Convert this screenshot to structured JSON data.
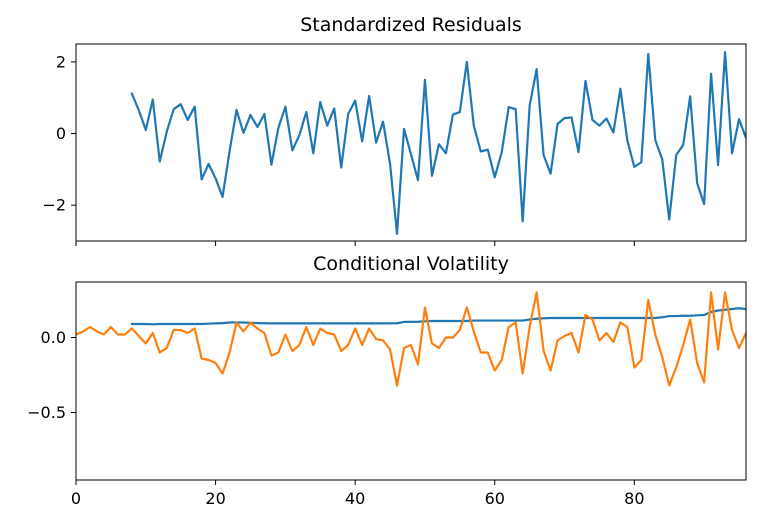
{
  "colors": {
    "blue": "#1f77b4",
    "orange": "#ff7f0e"
  },
  "chart_data": [
    {
      "type": "line",
      "title": "Standardized Residuals",
      "xlim": [
        0,
        96
      ],
      "ylim": [
        -3.0,
        2.5
      ],
      "x_ticks": [
        0,
        20,
        40,
        60,
        80
      ],
      "x_tick_labels_shown": false,
      "y_ticks": [
        2,
        0,
        -2
      ],
      "y_tick_labels": [
        "2",
        "0",
        "−2"
      ],
      "series": [
        {
          "color": "#1f77b4",
          "x_start": 8,
          "values": [
            1.12,
            0.65,
            0.1,
            0.95,
            -0.78,
            0.05,
            0.68,
            0.82,
            0.38,
            0.75,
            -1.28,
            -0.85,
            -1.25,
            -1.77,
            -0.5,
            0.66,
            0.02,
            0.52,
            0.18,
            0.55,
            -0.87,
            0.16,
            0.75,
            -0.47,
            -0.05,
            0.6,
            -0.55,
            0.88,
            0.22,
            0.7,
            -0.95,
            0.55,
            0.92,
            -0.22,
            1.05,
            -0.25,
            0.33,
            -0.85,
            -2.8,
            0.13,
            -0.58,
            -1.3,
            1.5,
            -1.18,
            -0.3,
            -0.55,
            0.53,
            0.6,
            2.0,
            0.22,
            -0.5,
            -0.45,
            -1.22,
            -0.52,
            0.74,
            0.68,
            -2.45,
            0.78,
            1.8,
            -0.6,
            -1.12,
            0.27,
            0.43,
            0.45,
            -0.52,
            1.47,
            0.38,
            0.22,
            0.42,
            0.03,
            1.25,
            -0.2,
            -0.93,
            -0.8,
            2.22,
            -0.18,
            -0.72,
            -2.4,
            -0.6,
            -0.32,
            1.04,
            -1.38,
            -1.97,
            1.67,
            -0.88,
            2.27,
            -0.55,
            0.4,
            -0.12
          ]
        }
      ]
    },
    {
      "type": "line",
      "title": "Conditional Volatility",
      "xlim": [
        0,
        96
      ],
      "ylim": [
        -0.95,
        0.37
      ],
      "x_ticks": [
        0,
        20,
        40,
        60,
        80
      ],
      "x_tick_labels": [
        "0",
        "20",
        "40",
        "60",
        "80"
      ],
      "y_ticks": [
        0.0,
        -0.5
      ],
      "y_tick_labels": [
        "0.0",
        "−0.5"
      ],
      "series": [
        {
          "color": "#1f77b4",
          "x_start": 8,
          "values": [
            0.09,
            0.09,
            0.09,
            0.088,
            0.09,
            0.09,
            0.09,
            0.09,
            0.09,
            0.09,
            0.09,
            0.092,
            0.094,
            0.096,
            0.1,
            0.1,
            0.1,
            0.098,
            0.096,
            0.095,
            0.094,
            0.094,
            0.094,
            0.094,
            0.094,
            0.094,
            0.094,
            0.094,
            0.094,
            0.094,
            0.094,
            0.094,
            0.094,
            0.094,
            0.094,
            0.094,
            0.094,
            0.094,
            0.095,
            0.104,
            0.104,
            0.105,
            0.108,
            0.11,
            0.11,
            0.11,
            0.11,
            0.11,
            0.11,
            0.113,
            0.113,
            0.113,
            0.113,
            0.113,
            0.113,
            0.113,
            0.113,
            0.12,
            0.125,
            0.128,
            0.13,
            0.13,
            0.13,
            0.13,
            0.13,
            0.13,
            0.13,
            0.13,
            0.13,
            0.13,
            0.13,
            0.13,
            0.13,
            0.13,
            0.13,
            0.13,
            0.135,
            0.143,
            0.143,
            0.145,
            0.145,
            0.148,
            0.15,
            0.17,
            0.18,
            0.185,
            0.19,
            0.195,
            0.19
          ]
        },
        {
          "color": "#ff7f0e",
          "x_start": 0,
          "values": [
            0.02,
            0.04,
            0.07,
            0.04,
            0.02,
            0.07,
            0.02,
            0.02,
            0.06,
            0.01,
            -0.04,
            0.03,
            -0.1,
            -0.07,
            0.05,
            0.05,
            0.03,
            0.06,
            -0.14,
            -0.15,
            -0.17,
            -0.24,
            -0.1,
            0.1,
            0.04,
            0.1,
            0.06,
            0.03,
            -0.12,
            -0.1,
            0.02,
            -0.09,
            -0.05,
            0.07,
            -0.05,
            0.06,
            0.03,
            0.02,
            -0.09,
            -0.05,
            0.06,
            -0.05,
            0.06,
            -0.01,
            -0.02,
            -0.08,
            -0.32,
            -0.07,
            -0.05,
            -0.18,
            0.2,
            -0.04,
            -0.07,
            0.0,
            0.0,
            0.05,
            0.2,
            0.04,
            -0.1,
            -0.1,
            -0.22,
            -0.15,
            0.07,
            0.1,
            -0.24,
            0.07,
            0.3,
            -0.09,
            -0.22,
            -0.02,
            0.01,
            0.03,
            -0.1,
            0.15,
            0.12,
            -0.02,
            0.03,
            -0.03,
            0.1,
            0.07,
            -0.2,
            -0.15,
            0.25,
            0.02,
            -0.13,
            -0.32,
            -0.2,
            -0.05,
            0.12,
            -0.17,
            -0.3,
            0.3,
            -0.08,
            0.3,
            0.05,
            -0.07,
            0.03
          ]
        }
      ]
    }
  ]
}
